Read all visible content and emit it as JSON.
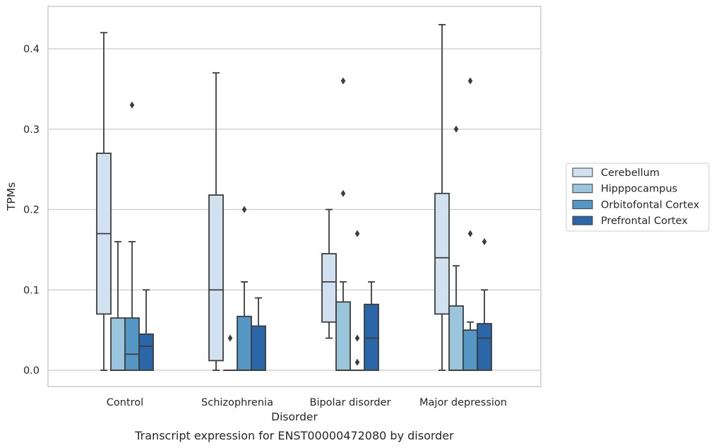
{
  "chart_data": {
    "type": "box",
    "xlabel": "Disorder",
    "ylabel": "TPMs",
    "caption": "Transcript expression for ENST00000472080 by disorder",
    "categories": [
      "Control",
      "Schizophrenia",
      "Bipolar disorder",
      "Major depression"
    ],
    "ylim": [
      -0.02,
      0.455
    ],
    "yticks": [
      0.0,
      0.1,
      0.2,
      0.3,
      0.4
    ],
    "ytick_labels": [
      "0.0",
      "0.1",
      "0.2",
      "0.3",
      "0.4"
    ],
    "grid": "horizontal",
    "legend_position": "right",
    "series": [
      {
        "name": "Cerebellum",
        "color": "#d2e1ef",
        "boxes": [
          {
            "whislo": 0.0,
            "q1": 0.07,
            "med": 0.17,
            "q3": 0.27,
            "whishi": 0.42,
            "fliers": []
          },
          {
            "whislo": 0.0,
            "q1": 0.012,
            "med": 0.1,
            "q3": 0.218,
            "whishi": 0.37,
            "fliers": []
          },
          {
            "whislo": 0.04,
            "q1": 0.06,
            "med": 0.11,
            "q3": 0.145,
            "whishi": 0.2,
            "fliers": []
          },
          {
            "whislo": 0.0,
            "q1": 0.07,
            "med": 0.14,
            "q3": 0.22,
            "whishi": 0.43,
            "fliers": []
          }
        ]
      },
      {
        "name": "Hipppocampus",
        "color": "#9ac5dd",
        "boxes": [
          {
            "whislo": 0.0,
            "q1": 0.0,
            "med": 0.0,
            "q3": 0.065,
            "whishi": 0.16,
            "fliers": []
          },
          {
            "whislo": 0.0,
            "q1": 0.0,
            "med": 0.0,
            "q3": 0.0,
            "whishi": 0.0,
            "fliers": [
              0.04
            ]
          },
          {
            "whislo": 0.0,
            "q1": 0.0,
            "med": 0.0,
            "q3": 0.085,
            "whishi": 0.11,
            "fliers": [
              0.22,
              0.36
            ]
          },
          {
            "whislo": 0.0,
            "q1": 0.0,
            "med": 0.0,
            "q3": 0.08,
            "whishi": 0.13,
            "fliers": [
              0.3
            ]
          }
        ]
      },
      {
        "name": "Orbitofontal Cortex",
        "color": "#5497c4",
        "boxes": [
          {
            "whislo": 0.0,
            "q1": 0.0,
            "med": 0.02,
            "q3": 0.065,
            "whishi": 0.16,
            "fliers": [
              0.33
            ]
          },
          {
            "whislo": 0.0,
            "q1": 0.0,
            "med": 0.0,
            "q3": 0.067,
            "whishi": 0.11,
            "fliers": [
              0.2
            ]
          },
          {
            "whislo": 0.0,
            "q1": 0.0,
            "med": 0.0,
            "q3": 0.0,
            "whishi": 0.0,
            "fliers": [
              0.17,
              0.04,
              0.01
            ]
          },
          {
            "whislo": 0.0,
            "q1": 0.0,
            "med": 0.0,
            "q3": 0.05,
            "whishi": 0.06,
            "fliers": [
              0.17,
              0.36
            ]
          }
        ]
      },
      {
        "name": "Prefrontal Cortex",
        "color": "#2b67a8",
        "boxes": [
          {
            "whislo": 0.0,
            "q1": 0.0,
            "med": 0.03,
            "q3": 0.045,
            "whishi": 0.1,
            "fliers": []
          },
          {
            "whislo": 0.0,
            "q1": 0.0,
            "med": 0.0,
            "q3": 0.055,
            "whishi": 0.09,
            "fliers": []
          },
          {
            "whislo": 0.0,
            "q1": 0.0,
            "med": 0.04,
            "q3": 0.082,
            "whishi": 0.11,
            "fliers": []
          },
          {
            "whislo": 0.0,
            "q1": 0.0,
            "med": 0.04,
            "q3": 0.058,
            "whishi": 0.1,
            "fliers": [
              0.16
            ]
          }
        ]
      }
    ]
  }
}
